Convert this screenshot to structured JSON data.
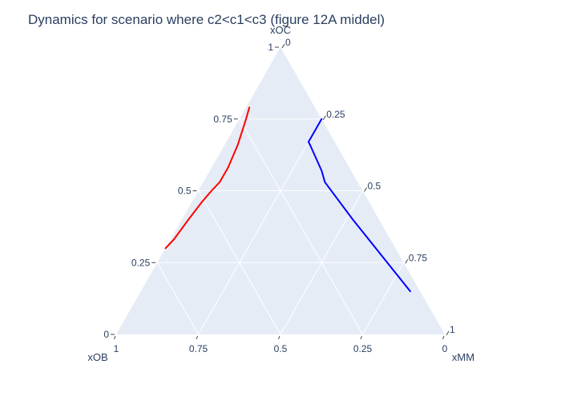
{
  "chart_data": {
    "type": "ternary",
    "title": "Dynamics for scenario where c2<c1<c3 (figure 12A middel)",
    "axes": {
      "a": {
        "title": "xOC",
        "ticks": [
          "0",
          "0.25",
          "0.5",
          "0.75",
          "1"
        ]
      },
      "b": {
        "title": "xOB",
        "ticks": [
          "0",
          "0.25",
          "0.5",
          "0.75",
          "1"
        ]
      },
      "c": {
        "title": "xMM",
        "ticks": [
          "0",
          "0.25",
          "0.5",
          "0.75",
          "1"
        ]
      },
      "range": [
        0,
        1
      ],
      "grid": true
    },
    "series": [
      {
        "color": "#ff0000",
        "points": [
          {
            "a": 0.3,
            "b": 0.7,
            "c": 0.0
          },
          {
            "a": 0.33,
            "b": 0.66,
            "c": 0.01
          },
          {
            "a": 0.4,
            "b": 0.58,
            "c": 0.02
          },
          {
            "a": 0.46,
            "b": 0.51,
            "c": 0.03
          },
          {
            "a": 0.5,
            "b": 0.46,
            "c": 0.04
          },
          {
            "a": 0.53,
            "b": 0.42,
            "c": 0.05
          },
          {
            "a": 0.58,
            "b": 0.37,
            "c": 0.05
          },
          {
            "a": 0.66,
            "b": 0.3,
            "c": 0.04
          },
          {
            "a": 0.75,
            "b": 0.23,
            "c": 0.02
          },
          {
            "a": 0.79,
            "b": 0.2,
            "c": 0.01
          }
        ]
      },
      {
        "color": "#0000ff",
        "points": [
          {
            "a": 0.75,
            "b": 0.0,
            "c": 0.25
          },
          {
            "a": 0.67,
            "b": 0.08,
            "c": 0.25
          },
          {
            "a": 0.66,
            "b": 0.08,
            "c": 0.26
          },
          {
            "a": 0.57,
            "b": 0.09,
            "c": 0.34
          },
          {
            "a": 0.53,
            "b": 0.1,
            "c": 0.37
          },
          {
            "a": 0.4,
            "b": 0.08,
            "c": 0.52
          },
          {
            "a": 0.15,
            "b": 0.03,
            "c": 0.82
          }
        ]
      }
    ]
  }
}
